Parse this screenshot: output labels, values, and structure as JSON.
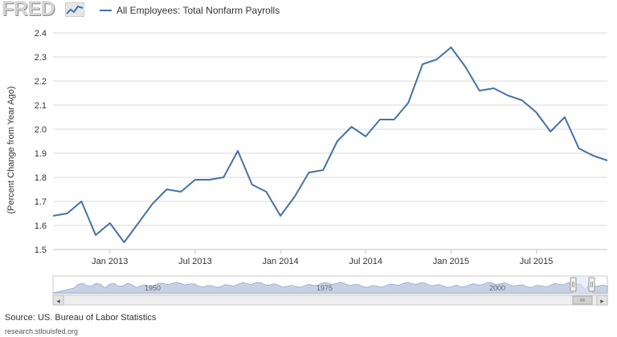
{
  "logo": {
    "text": "FRED"
  },
  "legend": {
    "label": "All Employees: Total Nonfarm Payrolls"
  },
  "colors": {
    "series": "#4572a7",
    "grid": "#d8d8d8",
    "navigator_fill": "#c6d2e4",
    "navigator_mask": "#dde5f0"
  },
  "chart_data": {
    "type": "line",
    "title": "",
    "xlabel": "",
    "ylabel": "(Percent Change from Year Ago)",
    "ylim": [
      1.5,
      2.4
    ],
    "yticks": [
      "1.5",
      "1.6",
      "1.7",
      "1.8",
      "1.9",
      "2.0",
      "2.1",
      "2.2",
      "2.3",
      "2.4"
    ],
    "xticks": [
      {
        "label": "Jan 2013",
        "date": "2013-01"
      },
      {
        "label": "Jul 2013",
        "date": "2013-07"
      },
      {
        "label": "Jan 2014",
        "date": "2014-01"
      },
      {
        "label": "Jul 2014",
        "date": "2014-07"
      },
      {
        "label": "Jan 2015",
        "date": "2015-01"
      },
      {
        "label": "Jul 2015",
        "date": "2015-07"
      }
    ],
    "xlim": [
      "2012-09",
      "2015-12"
    ],
    "grid": "horizontal",
    "legend_position": "top-left",
    "series": [
      {
        "name": "All Employees: Total Nonfarm Payrolls",
        "x": [
          "2012-09",
          "2012-10",
          "2012-11",
          "2012-12",
          "2013-01",
          "2013-02",
          "2013-03",
          "2013-04",
          "2013-05",
          "2013-06",
          "2013-07",
          "2013-08",
          "2013-09",
          "2013-10",
          "2013-11",
          "2013-12",
          "2014-01",
          "2014-02",
          "2014-03",
          "2014-04",
          "2014-05",
          "2014-06",
          "2014-07",
          "2014-08",
          "2014-09",
          "2014-10",
          "2014-11",
          "2014-12",
          "2015-01",
          "2015-02",
          "2015-03",
          "2015-04",
          "2015-05",
          "2015-06",
          "2015-07",
          "2015-08",
          "2015-09",
          "2015-10",
          "2015-11",
          "2015-12"
        ],
        "values": [
          1.64,
          1.65,
          1.7,
          1.56,
          1.61,
          1.53,
          1.61,
          1.69,
          1.75,
          1.74,
          1.79,
          1.79,
          1.8,
          1.91,
          1.77,
          1.74,
          1.64,
          1.72,
          1.82,
          1.83,
          1.95,
          2.01,
          1.97,
          2.04,
          2.04,
          2.11,
          2.27,
          2.29,
          2.34,
          2.26,
          2.16,
          2.17,
          2.14,
          2.12,
          2.07,
          1.99,
          2.05,
          1.92,
          1.89,
          1.87
        ]
      }
    ]
  },
  "navigator": {
    "labels": [
      "1950",
      "1975",
      "2000"
    ],
    "left_arrow": "◂",
    "right_arrow": "▸"
  },
  "footer": {
    "source": "Source: US. Bureau of Labor Statistics",
    "url": "research.stlouisfed.org"
  }
}
